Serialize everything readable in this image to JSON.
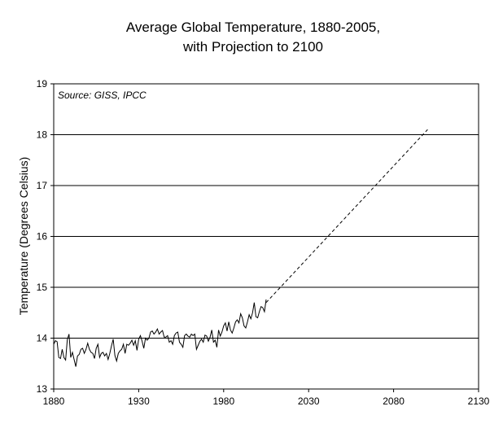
{
  "chart_data": {
    "type": "line",
    "title": [
      "Average Global Temperature, 1880-2005,",
      "with Projection to 2100"
    ],
    "xlabel": "",
    "ylabel": "Temperature (Degrees Celsius)",
    "annotation": "Source: GISS, IPCC",
    "xlim": [
      1880,
      2130
    ],
    "ylim": [
      13,
      19
    ],
    "xticks": [
      1880,
      1930,
      1980,
      2030,
      2080,
      2130
    ],
    "yticks": [
      13,
      14,
      15,
      16,
      17,
      18,
      19
    ],
    "grid": "horizontal",
    "legend": "none",
    "series": [
      {
        "style": "solid",
        "color": "#000000",
        "x": [
          1880,
          1881,
          1882,
          1883,
          1884,
          1885,
          1886,
          1887,
          1888,
          1889,
          1890,
          1891,
          1892,
          1893,
          1894,
          1895,
          1896,
          1897,
          1898,
          1899,
          1900,
          1901,
          1902,
          1903,
          1904,
          1905,
          1906,
          1907,
          1908,
          1909,
          1910,
          1911,
          1912,
          1913,
          1914,
          1915,
          1916,
          1917,
          1918,
          1919,
          1920,
          1921,
          1922,
          1923,
          1924,
          1925,
          1926,
          1927,
          1928,
          1929,
          1930,
          1931,
          1932,
          1933,
          1934,
          1935,
          1936,
          1937,
          1938,
          1939,
          1940,
          1941,
          1942,
          1943,
          1944,
          1945,
          1946,
          1947,
          1948,
          1949,
          1950,
          1951,
          1952,
          1953,
          1954,
          1955,
          1956,
          1957,
          1958,
          1959,
          1960,
          1961,
          1962,
          1963,
          1964,
          1965,
          1966,
          1967,
          1968,
          1969,
          1970,
          1971,
          1972,
          1973,
          1974,
          1975,
          1976,
          1977,
          1978,
          1979,
          1980,
          1981,
          1982,
          1983,
          1984,
          1985,
          1986,
          1987,
          1988,
          1989,
          1990,
          1991,
          1992,
          1993,
          1994,
          1995,
          1996,
          1997,
          1998,
          1999,
          2000,
          2001,
          2002,
          2003,
          2004,
          2005
        ],
        "values": [
          13.88,
          13.95,
          13.93,
          13.62,
          13.6,
          13.78,
          13.62,
          13.57,
          13.97,
          14.08,
          13.62,
          13.72,
          13.58,
          13.44,
          13.65,
          13.68,
          13.78,
          13.8,
          13.7,
          13.78,
          13.9,
          13.78,
          13.72,
          13.7,
          13.6,
          13.8,
          13.88,
          13.62,
          13.7,
          13.72,
          13.65,
          13.7,
          13.58,
          13.7,
          13.85,
          13.98,
          13.66,
          13.55,
          13.7,
          13.75,
          13.78,
          13.88,
          13.7,
          13.88,
          13.86,
          13.9,
          13.96,
          13.86,
          13.95,
          13.76,
          13.98,
          14.05,
          13.94,
          13.8,
          14.0,
          13.96,
          14.0,
          14.12,
          14.14,
          14.08,
          14.12,
          14.18,
          14.08,
          14.12,
          14.15,
          14.02,
          14.02,
          14.05,
          13.92,
          13.95,
          13.88,
          14.05,
          14.1,
          14.12,
          13.92,
          13.88,
          13.82,
          14.05,
          14.08,
          14.04,
          14.02,
          14.08,
          14.05,
          14.08,
          13.78,
          13.86,
          13.94,
          13.98,
          13.92,
          14.06,
          14.04,
          13.94,
          14.02,
          14.16,
          13.92,
          13.96,
          13.82,
          14.16,
          14.04,
          14.12,
          14.24,
          14.3,
          14.14,
          14.32,
          14.16,
          14.1,
          14.2,
          14.32,
          14.36,
          14.3,
          14.48,
          14.4,
          14.24,
          14.2,
          14.32,
          14.46,
          14.38,
          14.5,
          14.7,
          14.42,
          14.4,
          14.52,
          14.62,
          14.6,
          14.52,
          14.76
        ]
      },
      {
        "style": "dashed",
        "color": "#000000",
        "x": [
          2005,
          2100
        ],
        "values": [
          14.7,
          18.1
        ]
      }
    ]
  }
}
